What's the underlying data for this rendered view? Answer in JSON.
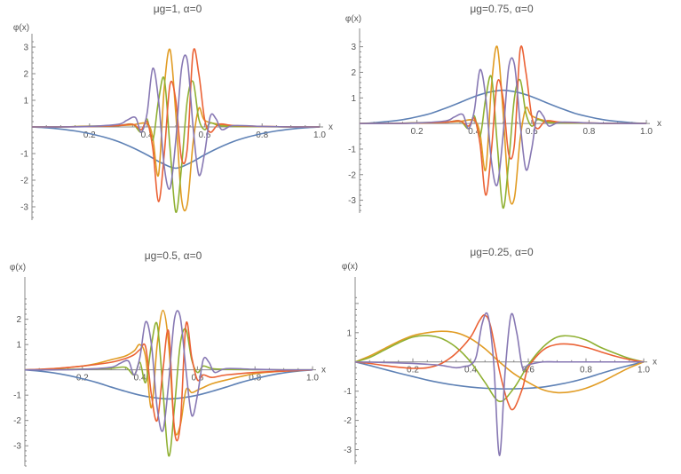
{
  "colors": [
    "#5E81B5",
    "#E19C24",
    "#8FB032",
    "#EB6235",
    "#8778B3"
  ],
  "chart_data": [
    {
      "type": "line",
      "title": "μg=1, α=0",
      "xlabel": "x",
      "ylabel": "φ(x)",
      "xlim": [
        0,
        1
      ],
      "ylim": [
        -3.5,
        3.3
      ],
      "x_ticks": [
        "0.2",
        "0.4",
        "0.6",
        "0.8",
        "1.0"
      ],
      "y_ticks": [
        "-3",
        "-2",
        "-1",
        "1",
        "2",
        "3"
      ],
      "grid": false,
      "legend": "none",
      "series": [
        {
          "x": [
            0,
            0.05,
            0.1,
            0.15,
            0.2,
            0.25,
            0.3,
            0.35,
            0.4,
            0.45,
            0.5,
            0.55,
            0.6,
            0.65,
            0.7,
            0.75,
            0.8,
            0.85,
            0.9,
            0.95,
            1.0
          ],
          "y": [
            0,
            -0.03,
            -0.08,
            -0.15,
            -0.25,
            -0.38,
            -0.55,
            -0.78,
            -1.05,
            -1.35,
            -1.55,
            -1.35,
            -1.05,
            -0.78,
            -0.55,
            -0.38,
            -0.25,
            -0.15,
            -0.08,
            -0.03,
            0
          ]
        },
        {
          "x": [
            0,
            0.1,
            0.2,
            0.3,
            0.35,
            0.4,
            0.42,
            0.44,
            0.46,
            0.48,
            0.5,
            0.52,
            0.54,
            0.56,
            0.58,
            0.6,
            0.65,
            0.7,
            0.8,
            0.9,
            1.0
          ],
          "y": [
            0,
            0,
            0.02,
            0.05,
            0.08,
            0.12,
            -0.4,
            -1.8,
            1.5,
            2.9,
            0.5,
            -2.7,
            -2.9,
            -0.6,
            0.7,
            0.25,
            0.1,
            0.05,
            0.02,
            0,
            0
          ]
        },
        {
          "x": [
            0,
            0.1,
            0.2,
            0.3,
            0.35,
            0.38,
            0.4,
            0.42,
            0.44,
            0.46,
            0.48,
            0.5,
            0.52,
            0.54,
            0.56,
            0.58,
            0.6,
            0.62,
            0.65,
            0.7,
            0.8,
            0.9,
            1.0
          ],
          "y": [
            0,
            0,
            0.03,
            0.05,
            0.1,
            -0.2,
            0.3,
            -0.5,
            1.0,
            1.8,
            -0.8,
            -3.2,
            -1.5,
            1.0,
            1.7,
            0.3,
            -0.1,
            0.15,
            0.05,
            0.02,
            0.01,
            0,
            0
          ]
        },
        {
          "x": [
            0,
            0.1,
            0.2,
            0.3,
            0.35,
            0.38,
            0.4,
            0.42,
            0.44,
            0.46,
            0.48,
            0.5,
            0.52,
            0.54,
            0.56,
            0.58,
            0.6,
            0.62,
            0.65,
            0.7,
            0.8,
            0.9,
            1.0
          ],
          "y": [
            0,
            0,
            0.02,
            0.05,
            0.1,
            -0.1,
            0.2,
            -0.8,
            -2.8,
            -1.0,
            1.6,
            1.0,
            -1.2,
            -0.8,
            2.8,
            2.0,
            0.3,
            -0.2,
            0.1,
            0.05,
            0.02,
            0,
            0
          ]
        },
        {
          "x": [
            0,
            0.1,
            0.2,
            0.3,
            0.33,
            0.36,
            0.38,
            0.4,
            0.42,
            0.44,
            0.46,
            0.48,
            0.5,
            0.52,
            0.54,
            0.56,
            0.58,
            0.6,
            0.62,
            0.64,
            0.66,
            0.7,
            0.8,
            0.9,
            1.0
          ],
          "y": [
            0,
            0,
            0.02,
            0.1,
            0.25,
            0.35,
            -0.2,
            0.5,
            2.2,
            1.0,
            -1.5,
            -2.3,
            -0.5,
            2.2,
            2.5,
            0.0,
            -1.8,
            -1.0,
            0.4,
            0.3,
            -0.1,
            0.05,
            0.02,
            0,
            0
          ]
        }
      ]
    },
    {
      "type": "line",
      "title": "μg=0.75, α=0",
      "xlabel": "x",
      "ylabel": "φ(x)",
      "xlim": [
        0,
        1
      ],
      "ylim": [
        -3.5,
        3.3
      ],
      "x_ticks": [
        "0.2",
        "0.4",
        "0.6",
        "0.8",
        "1.0"
      ],
      "y_ticks": [
        "-3",
        "-2",
        "-1",
        "1",
        "2",
        "3"
      ],
      "grid": false,
      "legend": "none",
      "series": [
        {
          "x": [
            0,
            0.05,
            0.1,
            0.15,
            0.2,
            0.25,
            0.3,
            0.35,
            0.4,
            0.45,
            0.5,
            0.55,
            0.6,
            0.65,
            0.7,
            0.75,
            0.8,
            0.85,
            0.9,
            0.95,
            1.0
          ],
          "y": [
            0,
            0.03,
            0.08,
            0.15,
            0.26,
            0.4,
            0.6,
            0.82,
            1.05,
            1.22,
            1.3,
            1.22,
            1.05,
            0.82,
            0.6,
            0.4,
            0.26,
            0.15,
            0.08,
            0.03,
            0
          ]
        },
        {
          "x": [
            0,
            0.1,
            0.2,
            0.3,
            0.35,
            0.4,
            0.42,
            0.44,
            0.46,
            0.48,
            0.5,
            0.52,
            0.54,
            0.56,
            0.58,
            0.6,
            0.65,
            0.7,
            0.8,
            0.9,
            1.0
          ],
          "y": [
            0,
            0,
            0.02,
            0.05,
            0.08,
            0.12,
            -0.4,
            -1.8,
            1.5,
            3.0,
            0.5,
            -2.7,
            -2.9,
            -0.6,
            0.6,
            0.3,
            0.1,
            0.05,
            0.02,
            0,
            0
          ]
        },
        {
          "x": [
            0,
            0.1,
            0.2,
            0.3,
            0.35,
            0.38,
            0.4,
            0.42,
            0.44,
            0.46,
            0.48,
            0.5,
            0.52,
            0.54,
            0.56,
            0.58,
            0.6,
            0.62,
            0.65,
            0.7,
            0.8,
            0.9,
            1.0
          ],
          "y": [
            0,
            0,
            0.03,
            0.05,
            0.1,
            -0.2,
            0.3,
            -0.5,
            1.0,
            1.8,
            -0.8,
            -3.3,
            -1.5,
            1.0,
            1.7,
            0.4,
            -0.1,
            0.15,
            0.05,
            0.02,
            0.01,
            0,
            0
          ]
        },
        {
          "x": [
            0,
            0.1,
            0.2,
            0.3,
            0.35,
            0.38,
            0.4,
            0.42,
            0.44,
            0.46,
            0.48,
            0.5,
            0.52,
            0.54,
            0.56,
            0.58,
            0.6,
            0.62,
            0.65,
            0.7,
            0.8,
            0.9,
            1.0
          ],
          "y": [
            0,
            0,
            0.02,
            0.05,
            0.1,
            -0.1,
            0.2,
            -0.8,
            -2.8,
            -1.0,
            1.6,
            1.0,
            -1.2,
            -0.8,
            2.9,
            2.0,
            0.3,
            -0.2,
            0.1,
            0.05,
            0.02,
            0,
            0
          ]
        },
        {
          "x": [
            0,
            0.1,
            0.2,
            0.3,
            0.33,
            0.36,
            0.38,
            0.4,
            0.42,
            0.44,
            0.46,
            0.48,
            0.5,
            0.52,
            0.54,
            0.56,
            0.58,
            0.6,
            0.62,
            0.64,
            0.66,
            0.7,
            0.8,
            0.9,
            1.0
          ],
          "y": [
            0,
            0,
            0.02,
            0.1,
            0.25,
            0.35,
            -0.2,
            0.5,
            2.1,
            1.0,
            -1.5,
            -2.4,
            -0.5,
            2.2,
            2.3,
            0.0,
            -1.8,
            -1.0,
            0.4,
            0.3,
            -0.1,
            0.05,
            0.02,
            0,
            0
          ]
        }
      ]
    },
    {
      "type": "line",
      "title": "μg=0.5, α=0",
      "xlabel": "x",
      "ylabel": "φ(x)",
      "xlim": [
        0,
        1
      ],
      "ylim": [
        -3.8,
        2.9
      ],
      "x_ticks": [
        "0.2",
        "0.4",
        "0.6",
        "0.8",
        "1.0"
      ],
      "y_ticks": [
        "-3",
        "-2",
        "-1",
        "1",
        "2"
      ],
      "grid": false,
      "legend": "none",
      "series": [
        {
          "x": [
            0,
            0.05,
            0.1,
            0.15,
            0.2,
            0.25,
            0.3,
            0.35,
            0.4,
            0.45,
            0.5,
            0.55,
            0.6,
            0.65,
            0.7,
            0.75,
            0.8,
            0.85,
            0.9,
            0.95,
            1.0
          ],
          "y": [
            0,
            -0.05,
            -0.12,
            -0.22,
            -0.35,
            -0.5,
            -0.68,
            -0.85,
            -1.0,
            -1.1,
            -1.15,
            -1.1,
            -1.0,
            -0.85,
            -0.68,
            -0.5,
            -0.35,
            -0.22,
            -0.12,
            -0.05,
            0
          ]
        },
        {
          "x": [
            0,
            0.1,
            0.2,
            0.25,
            0.3,
            0.35,
            0.38,
            0.4,
            0.42,
            0.44,
            0.46,
            0.48,
            0.5,
            0.52,
            0.54,
            0.56,
            0.58,
            0.6,
            0.62,
            0.65,
            0.7,
            0.8,
            0.9,
            1.0
          ],
          "y": [
            0,
            0.05,
            0.15,
            0.25,
            0.4,
            0.55,
            0.75,
            1.0,
            0.5,
            -1.5,
            1.0,
            2.35,
            1.0,
            -2.3,
            -2.2,
            -0.8,
            -0.9,
            -0.8,
            -0.7,
            -0.55,
            -0.4,
            -0.15,
            -0.05,
            0
          ]
        },
        {
          "x": [
            0,
            0.1,
            0.2,
            0.3,
            0.35,
            0.38,
            0.4,
            0.42,
            0.44,
            0.46,
            0.48,
            0.5,
            0.52,
            0.54,
            0.56,
            0.58,
            0.6,
            0.62,
            0.65,
            0.7,
            0.8,
            0.9,
            1.0
          ],
          "y": [
            0,
            0.01,
            0.03,
            0.06,
            0.1,
            -0.2,
            0.3,
            -0.5,
            1.0,
            1.8,
            -0.8,
            -3.4,
            -1.5,
            1.0,
            1.6,
            0.4,
            -0.1,
            0.15,
            0.05,
            0.02,
            0.01,
            0,
            0
          ]
        },
        {
          "x": [
            0,
            0.1,
            0.2,
            0.3,
            0.35,
            0.38,
            0.4,
            0.42,
            0.44,
            0.46,
            0.48,
            0.5,
            0.52,
            0.54,
            0.56,
            0.58,
            0.6,
            0.62,
            0.65,
            0.7,
            0.8,
            0.9,
            1.0
          ],
          "y": [
            0,
            0.05,
            0.15,
            0.3,
            0.45,
            0.6,
            0.8,
            0.9,
            -1.0,
            -2.0,
            0.0,
            1.5,
            -2.4,
            -2.2,
            1.8,
            0.5,
            -0.4,
            -0.2,
            -0.3,
            -0.2,
            -0.1,
            -0.05,
            0
          ]
        },
        {
          "x": [
            0,
            0.1,
            0.2,
            0.3,
            0.33,
            0.36,
            0.38,
            0.4,
            0.42,
            0.44,
            0.46,
            0.48,
            0.5,
            0.52,
            0.54,
            0.56,
            0.58,
            0.6,
            0.62,
            0.64,
            0.66,
            0.7,
            0.8,
            0.9,
            1.0
          ],
          "y": [
            0,
            0,
            0.02,
            0.1,
            0.25,
            0.35,
            -0.2,
            0.5,
            1.9,
            1.0,
            -1.5,
            -2.4,
            -0.5,
            2.0,
            2.1,
            0.0,
            -1.8,
            -1.0,
            0.4,
            0.3,
            -0.1,
            0.05,
            0.02,
            0,
            0
          ]
        }
      ]
    },
    {
      "type": "line",
      "title": "μg=0.25, α=0",
      "xlabel": "x",
      "ylabel": "φ(x)",
      "xlim": [
        0,
        1
      ],
      "ylim": [
        -3.5,
        2.3
      ],
      "x_ticks": [
        "0.2",
        "0.4",
        "0.6",
        "0.8",
        "1.0"
      ],
      "y_ticks": [
        "-3",
        "-2",
        "-1",
        "1"
      ],
      "grid": false,
      "legend": "none",
      "series": [
        {
          "x": [
            0,
            0.05,
            0.1,
            0.15,
            0.2,
            0.25,
            0.3,
            0.35,
            0.4,
            0.45,
            0.5,
            0.55,
            0.6,
            0.65,
            0.7,
            0.75,
            0.8,
            0.85,
            0.9,
            0.95,
            1.0
          ],
          "y": [
            0,
            -0.12,
            -0.25,
            -0.38,
            -0.5,
            -0.62,
            -0.72,
            -0.8,
            -0.86,
            -0.9,
            -0.92,
            -0.92,
            -0.9,
            -0.86,
            -0.78,
            -0.68,
            -0.55,
            -0.4,
            -0.25,
            -0.12,
            0
          ]
        },
        {
          "x": [
            0,
            0.05,
            0.1,
            0.15,
            0.2,
            0.25,
            0.3,
            0.35,
            0.4,
            0.45,
            0.5,
            0.55,
            0.6,
            0.65,
            0.7,
            0.75,
            0.8,
            0.85,
            0.9,
            0.95,
            1.0
          ],
          "y": [
            0,
            0.2,
            0.45,
            0.7,
            0.9,
            1.0,
            1.05,
            1.0,
            0.8,
            0.45,
            0.0,
            -0.4,
            -0.7,
            -0.95,
            -1.05,
            -1.02,
            -0.9,
            -0.7,
            -0.45,
            -0.2,
            0
          ]
        },
        {
          "x": [
            0,
            0.05,
            0.1,
            0.15,
            0.2,
            0.25,
            0.3,
            0.35,
            0.4,
            0.45,
            0.5,
            0.55,
            0.6,
            0.65,
            0.7,
            0.75,
            0.8,
            0.85,
            0.9,
            0.95,
            1.0
          ],
          "y": [
            0,
            0.15,
            0.4,
            0.65,
            0.85,
            0.9,
            0.8,
            0.5,
            0.0,
            -0.7,
            -1.35,
            -0.9,
            -0.1,
            0.5,
            0.85,
            0.88,
            0.75,
            0.5,
            0.3,
            0.12,
            0
          ]
        },
        {
          "x": [
            0,
            0.05,
            0.1,
            0.15,
            0.2,
            0.25,
            0.3,
            0.35,
            0.4,
            0.43,
            0.45,
            0.47,
            0.5,
            0.53,
            0.55,
            0.58,
            0.6,
            0.65,
            0.7,
            0.75,
            0.8,
            0.85,
            0.9,
            0.95,
            1.0
          ],
          "y": [
            0,
            -0.05,
            -0.12,
            -0.18,
            -0.22,
            -0.2,
            -0.05,
            0.3,
            0.85,
            1.4,
            1.6,
            1.2,
            -0.3,
            -1.4,
            -1.6,
            -0.9,
            -0.2,
            0.4,
            0.6,
            0.6,
            0.5,
            0.35,
            0.2,
            0.08,
            0
          ]
        },
        {
          "x": [
            0,
            0.1,
            0.2,
            0.25,
            0.3,
            0.35,
            0.38,
            0.4,
            0.42,
            0.44,
            0.46,
            0.48,
            0.5,
            0.52,
            0.54,
            0.56,
            0.58,
            0.6,
            0.65,
            0.7,
            0.8,
            0.9,
            1.0
          ],
          "y": [
            0,
            -0.02,
            -0.05,
            -0.08,
            -0.12,
            -0.2,
            -0.15,
            -0.1,
            0.2,
            1.3,
            1.6,
            0.0,
            -3.2,
            -0.3,
            1.6,
            1.0,
            -0.2,
            -0.1,
            0.0,
            0.0,
            0.0,
            0,
            0
          ]
        }
      ]
    }
  ]
}
